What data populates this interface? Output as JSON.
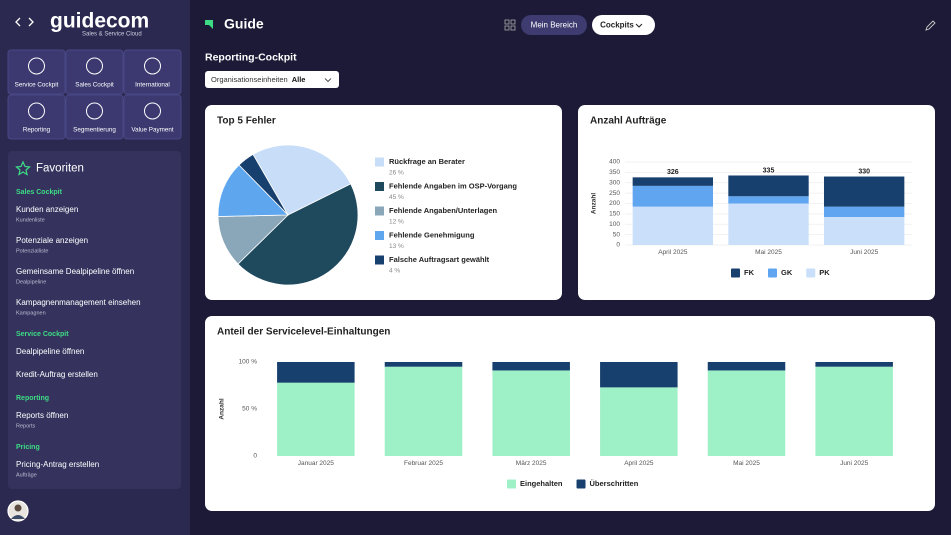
{
  "sidebar": {
    "logo": "guidecom",
    "logo_subtitle": "Sales & Service Cloud",
    "tiles": [
      "Service Cockpit",
      "Sales Cockpit",
      "International",
      "Reporting",
      "Segmentierung",
      "Value Payment"
    ],
    "favorites": {
      "title": "Favoriten",
      "groups": [
        {
          "title": "Sales Cockpit",
          "items": [
            {
              "label": "Kunden anzeigen",
              "sub": "Kundenliste"
            },
            {
              "label": "Potenziale anzeigen",
              "sub": "Potenzialliste"
            },
            {
              "label": "Gemeinsame Dealpipeline öffnen",
              "sub": "Dealpipeline"
            },
            {
              "label": "Kampagnenmanagement einsehen",
              "sub": "Kampagnen"
            }
          ]
        },
        {
          "title": "Service Cockpit",
          "items": [
            {
              "label": "Dealpipeline öffnen"
            },
            {
              "label": "Kredit-Auftrag erstellen"
            }
          ]
        },
        {
          "title": "Reporting",
          "items": [
            {
              "label": "Reports öffnen",
              "sub": "Reports"
            }
          ]
        },
        {
          "title": "Pricing",
          "items": [
            {
              "label": "Pricing-Antrag erstellen",
              "sub": "Aufträge"
            }
          ]
        }
      ]
    }
  },
  "header": {
    "title": "Guide",
    "buttons": [
      "Mein Bereich",
      "Cockpits"
    ]
  },
  "page_title": "Reporting-Cockpit",
  "filter": {
    "label": "Organisationseinheiten",
    "value": "Alle"
  },
  "chart_data": [
    {
      "type": "pie",
      "title": "Top 5 Fehler",
      "categories": [
        "Rückfrage an Berater",
        "Fehlende Angaben im OSP-Vorgang",
        "Fehlende Angaben/Unterlagen",
        "Fehlende Genehmigung",
        "Falsche Auftragsart gewählt"
      ],
      "values": [
        26,
        45,
        12,
        13,
        4
      ],
      "value_labels": [
        "26 %",
        "45 %",
        "12 %",
        "13 %",
        "4 %"
      ],
      "colors": [
        "#c8ddf7",
        "#1f4a5e",
        "#8aa7b9",
        "#5ea7ef",
        "#17406e"
      ]
    },
    {
      "type": "stacked-bar",
      "title": "Anzahl Aufträge",
      "y_label": "Anzahl",
      "categories": [
        "April 2025",
        "Mai 2025",
        "Juni 2025"
      ],
      "series": [
        {
          "name": "PK",
          "color": "#c9dffa",
          "values": [
            185,
            200,
            135
          ]
        },
        {
          "name": "GK",
          "color": "#5fa5ef",
          "values": [
            100,
            35,
            50
          ]
        },
        {
          "name": "FK",
          "color": "#17406e",
          "values": [
            41,
            100,
            145
          ]
        }
      ],
      "total_labels": [
        326,
        335,
        330
      ],
      "ylim": [
        0,
        400
      ],
      "yticks": [
        0,
        50,
        100,
        150,
        200,
        250,
        300,
        350,
        400
      ],
      "grid": true
    },
    {
      "type": "stacked-bar",
      "title": "Anteil der Servicelevel-Einhaltungen",
      "y_label": "Anzahl",
      "categories": [
        "Januar 2025",
        "Februar 2025",
        "März 2025",
        "April 2025",
        "Mai 2025",
        "Juni 2025"
      ],
      "series": [
        {
          "name": "Eingehalten",
          "color": "#9ef0c6",
          "values": [
            78,
            95,
            91,
            73,
            91,
            95
          ]
        },
        {
          "name": "Überschritten",
          "color": "#17406e",
          "values": [
            22,
            5,
            9,
            27,
            9,
            5
          ]
        }
      ],
      "ylim": [
        0,
        100
      ],
      "yticks": [
        0,
        {
          "value": 50,
          "label": "50 %"
        },
        {
          "value": 100,
          "label": "100 %"
        }
      ],
      "grid": false
    }
  ]
}
